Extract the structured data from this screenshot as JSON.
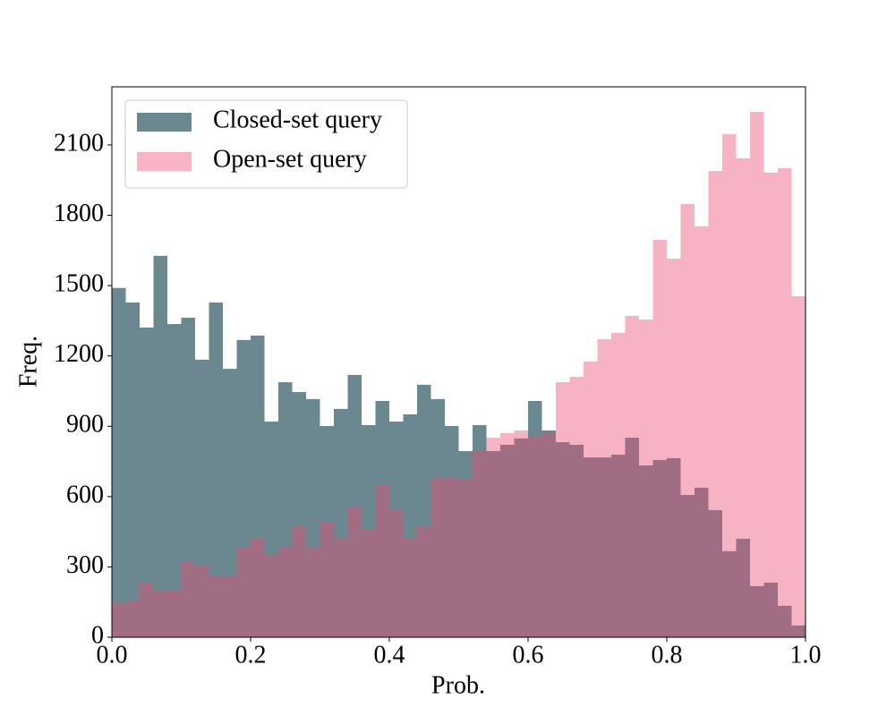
{
  "chart_data": {
    "type": "histogram",
    "xlabel": "Prob.",
    "ylabel": "Freq.",
    "bins": [
      0,
      0.02,
      0.04,
      0.06,
      0.08,
      0.1,
      0.12,
      0.14,
      0.16,
      0.18,
      0.2,
      0.22,
      0.24,
      0.26,
      0.28,
      0.3,
      0.32,
      0.34,
      0.36,
      0.38,
      0.4,
      0.42,
      0.44,
      0.46,
      0.48,
      0.5,
      0.52,
      0.54,
      0.56,
      0.58,
      0.6,
      0.62,
      0.64,
      0.66,
      0.68,
      0.7,
      0.72,
      0.74,
      0.76,
      0.78,
      0.8,
      0.82,
      0.84,
      0.86,
      0.88,
      0.9,
      0.92,
      0.94,
      0.96,
      0.98,
      1
    ],
    "series": [
      {
        "name": "Closed-set query",
        "color": "#6b8891",
        "alpha": 1,
        "values": [
          1490,
          1428,
          1321,
          1627,
          1336,
          1363,
          1184,
          1428,
          1145,
          1268,
          1287,
          920,
          1088,
          1046,
          1016,
          901,
          974,
          1119,
          905,
          1008,
          920,
          951,
          1077,
          1016,
          901,
          794,
          905,
          794,
          821,
          848,
          1008,
          882,
          832,
          821,
          767,
          767,
          779,
          851,
          733,
          756,
          764,
          607,
          638,
          542,
          367,
          420,
          218,
          233,
          134,
          50
        ]
      },
      {
        "name": "Open-set query",
        "color": "#eb4970",
        "alpha": 0.41,
        "values": [
          145,
          157,
          233,
          202,
          202,
          325,
          305,
          263,
          263,
          386,
          420,
          351,
          386,
          477,
          382,
          493,
          424,
          557,
          462,
          653,
          546,
          424,
          473,
          683,
          683,
          676,
          794,
          851,
          871,
          882,
          855,
          871,
          1088,
          1111,
          1176,
          1271,
          1298,
          1371,
          1355,
          1695,
          1615,
          1848,
          1753,
          1989,
          2146,
          2043,
          2241,
          1982,
          2001,
          1455
        ]
      }
    ],
    "xlim": [
      0,
      1
    ],
    "ylim": [
      0,
      2348
    ],
    "xticks": [
      {
        "value": 0,
        "label": "0.0"
      },
      0.2,
      0.4,
      0.6,
      0.8,
      {
        "value": 1,
        "label": "1.0"
      }
    ],
    "yticks": [
      0,
      300,
      600,
      900,
      1200,
      1500,
      1800,
      2100
    ],
    "legend": "upper left"
  }
}
